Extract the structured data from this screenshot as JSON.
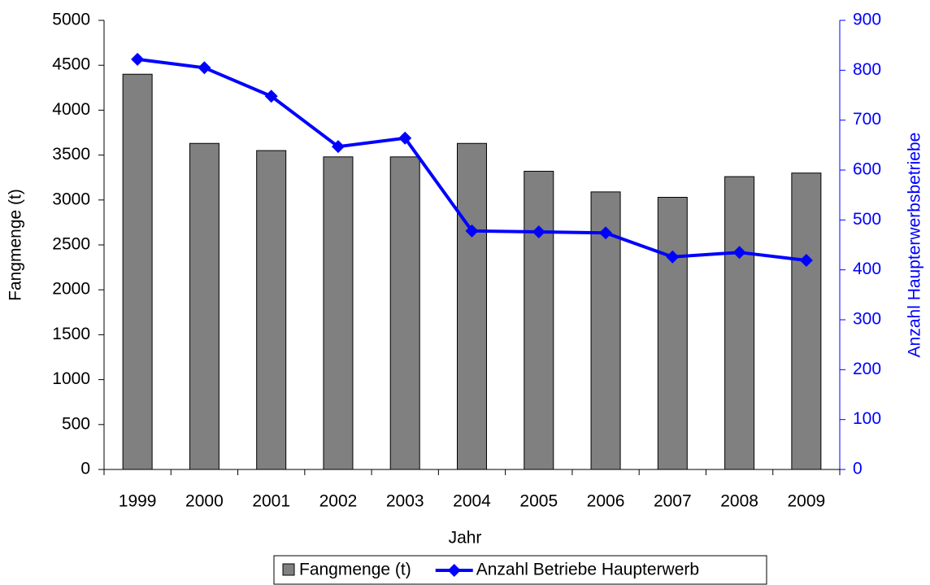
{
  "chart_data": {
    "type": "bar-line",
    "x_label": "Jahr",
    "y_label": "Fangmenge (t)",
    "y2_label": "Anzahl Haupterwerbsbetriebe",
    "categories": [
      "1999",
      "2000",
      "2001",
      "2002",
      "2003",
      "2004",
      "2005",
      "2006",
      "2007",
      "2008",
      "2009"
    ],
    "series": [
      {
        "name": "Fangmenge (t)",
        "type": "bar",
        "color": "#808080",
        "values": [
          4400,
          3630,
          3550,
          3480,
          3480,
          3630,
          3320,
          3090,
          3030,
          3260,
          3300
        ]
      },
      {
        "name": "Anzahl Betriebe Haupterwerb",
        "type": "line",
        "axis": "y2",
        "color": "#0000ff",
        "values": [
          822,
          805,
          748,
          647,
          664,
          478,
          476,
          474,
          426,
          435,
          419
        ]
      }
    ],
    "ylim": [
      0,
      5000
    ],
    "yticks": [
      0,
      500,
      1000,
      1500,
      2000,
      2500,
      3000,
      3500,
      4000,
      4500,
      5000
    ],
    "y2lim": [
      0,
      900
    ],
    "y2ticks": [
      0,
      100,
      200,
      300,
      400,
      500,
      600,
      700,
      800,
      900
    ],
    "legend": "bottom"
  }
}
